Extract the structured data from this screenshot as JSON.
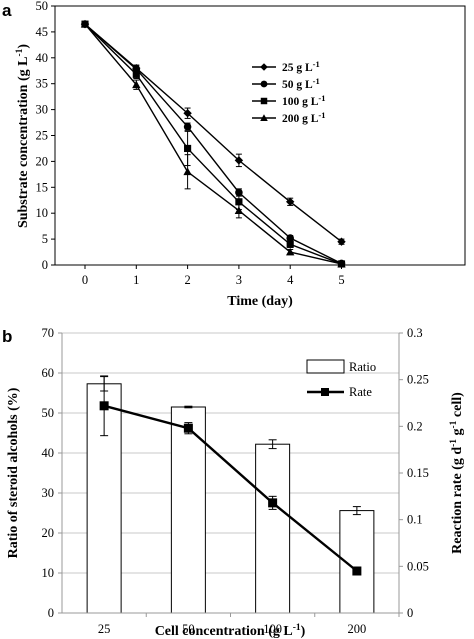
{
  "chart_data": [
    {
      "panel_label": "a",
      "type": "line",
      "x": [
        0,
        1,
        2,
        3,
        4,
        5
      ],
      "xlabel": "Time (day)",
      "ylabel": "Substrate concentration (g L",
      "ylabel_sup": "-1",
      "ylabel_suffix": ")",
      "ylim": [
        0,
        50
      ],
      "yticks": [
        0,
        5,
        10,
        15,
        20,
        25,
        30,
        35,
        40,
        45,
        50
      ],
      "legend_position": "right",
      "series": [
        {
          "name": "25 g L",
          "name_sup": "-1",
          "marker": "diamond",
          "values": [
            46.5,
            38.0,
            29.3,
            20.2,
            12.2,
            4.5
          ],
          "errors": [
            0.5,
            0.6,
            1.0,
            1.2,
            0.7,
            0.5
          ]
        },
        {
          "name": "50 g L",
          "name_sup": "-1",
          "marker": "circle",
          "values": [
            46.5,
            37.8,
            26.7,
            14.0,
            5.2,
            0.3
          ],
          "errors": [
            0.4,
            0.6,
            0.7,
            0.7,
            0.5,
            0.2
          ]
        },
        {
          "name": "100 g L",
          "name_sup": "-1",
          "marker": "square",
          "values": [
            46.5,
            36.8,
            22.5,
            12.2,
            4.0,
            0.2
          ],
          "errors": [
            0.4,
            0.8,
            3.3,
            1.5,
            0.6,
            0.2
          ]
        },
        {
          "name": "200 g L",
          "name_sup": "-1",
          "marker": "triangle",
          "values": [
            46.5,
            34.8,
            18.0,
            10.5,
            2.5,
            0.2
          ],
          "errors": [
            0.4,
            0.9,
            3.3,
            1.4,
            0.5,
            0.2
          ]
        }
      ]
    },
    {
      "panel_label": "b",
      "type": "bar",
      "categories": [
        "25",
        "50",
        "100",
        "200"
      ],
      "xlabel": "Cell concentration (g L",
      "xlabel_sup": "-1",
      "xlabel_suffix": ")",
      "ylabel": "Ratio of steroid alcohols (%)",
      "ylim": [
        0,
        70
      ],
      "yticks": [
        0,
        10,
        20,
        30,
        40,
        50,
        60,
        70
      ],
      "y2label": "Reaction rate (g d",
      "y2label_sup1": "-1",
      "y2label_mid": " g",
      "y2label_sup2": "-1",
      "y2label_suffix": " cell)",
      "y2lim": [
        0,
        0.3
      ],
      "y2ticks": [
        "0",
        "0.05",
        "0.1",
        "0.15",
        "0.2",
        "0.25",
        "0.3"
      ],
      "legend_position": "top-right",
      "series": [
        {
          "name": "Ratio",
          "type": "bar",
          "axis": "left",
          "values": [
            57.3,
            51.5,
            42.2,
            25.6
          ],
          "errors": [
            1.8,
            0.2,
            1.1,
            1.0
          ]
        },
        {
          "name": "Rate",
          "type": "line",
          "axis": "right",
          "values": [
            0.222,
            0.198,
            0.118,
            0.045
          ],
          "errors": [
            0.032,
            0.006,
            0.007,
            0.002
          ]
        }
      ]
    }
  ]
}
